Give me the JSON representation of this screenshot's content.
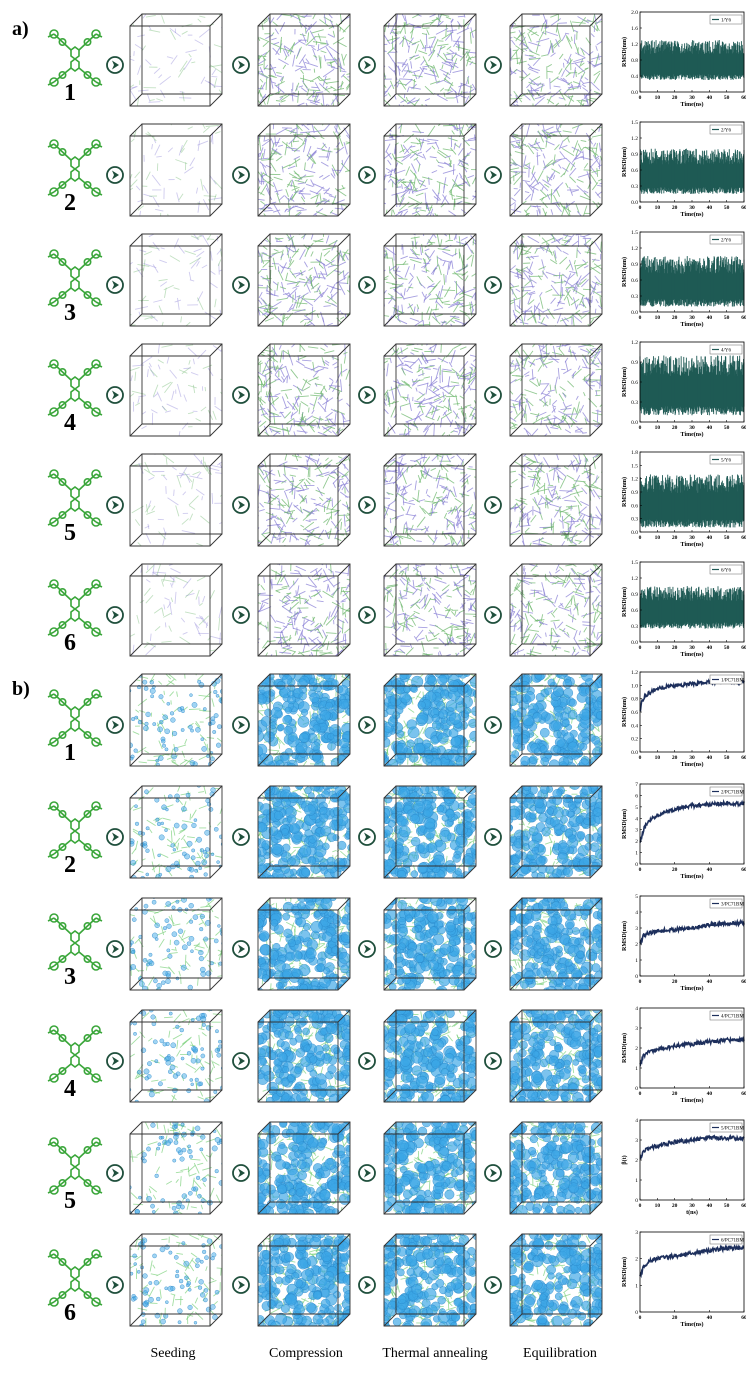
{
  "panels": {
    "a": {
      "label": "a)"
    },
    "b": {
      "label": "b)"
    }
  },
  "stages": [
    "Seeding",
    "Compression",
    "Thermal annealing",
    "Equilibration"
  ],
  "chart_axes": {
    "xlabel": "Time(ns)",
    "ylabel": "RMSD(nm)"
  },
  "colors": {
    "molecule": "#3aa63a",
    "arrow": "#1f4f3c",
    "y6_fill": "#1f5a55",
    "pcbm_line": "#1d2f5c",
    "a_box_strands": [
      "#8b82d6",
      "#6fb86f"
    ],
    "b_box_spheres": "#3ba6e6",
    "b_box_strands": "#7ad07a"
  },
  "chart_data": [
    {
      "type": "line",
      "panel": "a",
      "index": "1",
      "legend": "1/Y6",
      "title": "",
      "xlabel": "Time(ns)",
      "ylabel": "RMSD(nm)",
      "xlim": [
        0,
        60
      ],
      "ylim": [
        0,
        2.0
      ],
      "yticks": [
        "0.0",
        "0.4",
        "0.8",
        "1.2",
        "1.6",
        "2.0"
      ],
      "xticks": [
        "0",
        "10",
        "20",
        "30",
        "40",
        "50",
        "60"
      ],
      "band": {
        "low": 0.3,
        "high": 1.3
      }
    },
    {
      "type": "line",
      "panel": "a",
      "index": "2",
      "legend": "2/Y6",
      "title": "",
      "xlabel": "Time(ns)",
      "ylabel": "RMSD(nm)",
      "xlim": [
        0,
        60
      ],
      "ylim": [
        0,
        1.5
      ],
      "yticks": [
        "0.0",
        "0.3",
        "0.6",
        "0.9",
        "1.2",
        "1.5"
      ],
      "xticks": [
        "0",
        "10",
        "20",
        "30",
        "40",
        "50",
        "60"
      ],
      "band": {
        "low": 0.15,
        "high": 1.0
      }
    },
    {
      "type": "line",
      "panel": "a",
      "index": "3",
      "legend": "2/Y6",
      "title": "",
      "xlabel": "Time(ns)",
      "ylabel": "RMSD(nm)",
      "xlim": [
        0,
        60
      ],
      "ylim": [
        0,
        1.5
      ],
      "yticks": [
        "0.0",
        "0.3",
        "0.6",
        "0.9",
        "1.2",
        "1.5"
      ],
      "xticks": [
        "0",
        "10",
        "20",
        "30",
        "40",
        "50",
        "60"
      ],
      "band": {
        "low": 0.1,
        "high": 1.05
      }
    },
    {
      "type": "line",
      "panel": "a",
      "index": "4",
      "legend": "4/Y6",
      "title": "",
      "xlabel": "Time(ns)",
      "ylabel": "RMSD(nm)",
      "xlim": [
        0,
        60
      ],
      "ylim": [
        0,
        1.2
      ],
      "yticks": [
        "0.0",
        "0.3",
        "0.6",
        "0.9",
        "1.2"
      ],
      "xticks": [
        "0",
        "10",
        "20",
        "30",
        "40",
        "50",
        "60"
      ],
      "band": {
        "low": 0.1,
        "high": 1.0
      }
    },
    {
      "type": "line",
      "panel": "a",
      "index": "5",
      "legend": "5/Y6",
      "title": "",
      "xlabel": "Time(ns)",
      "ylabel": "RMSD(nm)",
      "xlim": [
        0,
        60
      ],
      "ylim": [
        0,
        1.8
      ],
      "yticks": [
        "0.0",
        "0.3",
        "0.6",
        "0.9",
        "1.2",
        "1.5",
        "1.8"
      ],
      "xticks": [
        "0",
        "10",
        "20",
        "30",
        "40",
        "50",
        "60"
      ],
      "band": {
        "low": 0.1,
        "high": 1.3
      }
    },
    {
      "type": "line",
      "panel": "a",
      "index": "6",
      "legend": "6/Y6",
      "title": "",
      "xlabel": "Time(ns)",
      "ylabel": "RMSD(nm)",
      "xlim": [
        0,
        60
      ],
      "ylim": [
        0,
        1.5
      ],
      "yticks": [
        "0.0",
        "0.3",
        "0.6",
        "0.9",
        "1.2",
        "1.5"
      ],
      "xticks": [
        "0",
        "10",
        "20",
        "30",
        "40",
        "50",
        "60"
      ],
      "band": {
        "low": 0.25,
        "high": 1.05
      }
    },
    {
      "type": "line",
      "panel": "b",
      "index": "1",
      "legend": "1/PC71BM",
      "title": "",
      "xlabel": "Time(ns)",
      "ylabel": "RMSD(nm)",
      "xlim": [
        0,
        60
      ],
      "ylim": [
        0,
        1.2
      ],
      "yticks": [
        "0.0",
        "0.2",
        "0.4",
        "0.6",
        "0.8",
        "1.0",
        "1.2"
      ],
      "xticks": [
        "0",
        "10",
        "20",
        "30",
        "40",
        "50",
        "60"
      ],
      "series": [
        {
          "x": [
            0,
            1,
            3,
            6,
            10,
            15,
            20,
            30,
            40,
            50,
            60
          ],
          "y": [
            0.6,
            0.75,
            0.85,
            0.9,
            0.95,
            0.98,
            1.0,
            1.02,
            1.05,
            1.05,
            1.05
          ]
        }
      ]
    },
    {
      "type": "line",
      "panel": "b",
      "index": "2",
      "legend": "2/PC71BM",
      "title": "",
      "xlabel": "Time(ns)",
      "ylabel": "RMSD(nm)",
      "xlim": [
        0,
        60
      ],
      "ylim": [
        0,
        7
      ],
      "yticks": [
        "0",
        "1",
        "2",
        "3",
        "4",
        "5",
        "6",
        "7"
      ],
      "xticks": [
        "0",
        "20",
        "40",
        "60"
      ],
      "series": [
        {
          "x": [
            0,
            2,
            5,
            10,
            15,
            20,
            30,
            40,
            50,
            60
          ],
          "y": [
            1.8,
            3.0,
            3.8,
            4.3,
            4.6,
            4.8,
            5.1,
            5.2,
            5.3,
            5.3
          ]
        }
      ]
    },
    {
      "type": "line",
      "panel": "b",
      "index": "3",
      "legend": "3/PC71BM",
      "title": "",
      "xlabel": "Time(ns)",
      "ylabel": "RMSD(nm)",
      "xlim": [
        0,
        60
      ],
      "ylim": [
        0,
        5
      ],
      "yticks": [
        "0",
        "1",
        "2",
        "3",
        "4",
        "5"
      ],
      "xticks": [
        "0",
        "20",
        "40",
        "60"
      ],
      "series": [
        {
          "x": [
            0,
            2,
            5,
            10,
            20,
            30,
            40,
            50,
            60
          ],
          "y": [
            2.0,
            2.5,
            2.7,
            2.8,
            2.9,
            3.0,
            3.2,
            3.3,
            3.3
          ]
        }
      ]
    },
    {
      "type": "line",
      "panel": "b",
      "index": "4",
      "legend": "4/PC71BM",
      "title": "",
      "xlabel": "Time(ns)",
      "ylabel": "RMSD(nm)",
      "xlim": [
        0,
        60
      ],
      "ylim": [
        0,
        4
      ],
      "yticks": [
        "0",
        "1",
        "2",
        "3",
        "4"
      ],
      "xticks": [
        "0",
        "20",
        "40",
        "60"
      ],
      "series": [
        {
          "x": [
            0,
            2,
            5,
            10,
            20,
            30,
            40,
            50,
            60
          ],
          "y": [
            1.2,
            1.6,
            1.8,
            1.9,
            2.1,
            2.2,
            2.3,
            2.4,
            2.4
          ]
        }
      ]
    },
    {
      "type": "line",
      "panel": "b",
      "index": "5",
      "legend": "5/PC71BM",
      "title": "",
      "xlabel": "t(ns)",
      "ylabel": "β(t)",
      "xlim": [
        0,
        60
      ],
      "ylim": [
        0,
        4
      ],
      "yticks": [
        "0",
        "1",
        "2",
        "3",
        "4"
      ],
      "xticks": [
        "0",
        "10",
        "20",
        "30",
        "40",
        "50",
        "60"
      ],
      "series": [
        {
          "x": [
            0,
            2,
            5,
            10,
            20,
            30,
            40,
            50,
            60
          ],
          "y": [
            2.0,
            2.4,
            2.6,
            2.7,
            2.9,
            3.0,
            3.1,
            3.1,
            3.1
          ]
        }
      ]
    },
    {
      "type": "line",
      "panel": "b",
      "index": "6",
      "legend": "6/PC71BM",
      "title": "",
      "xlabel": "Time(ns)",
      "ylabel": "RMSD(nm)",
      "xlim": [
        0,
        60
      ],
      "ylim": [
        0,
        3
      ],
      "yticks": [
        "0",
        "1",
        "2",
        "3"
      ],
      "xticks": [
        "0",
        "20",
        "40",
        "60"
      ],
      "series": [
        {
          "x": [
            0,
            2,
            5,
            10,
            20,
            30,
            40,
            50,
            60
          ],
          "y": [
            1.3,
            1.7,
            1.9,
            2.0,
            2.1,
            2.2,
            2.3,
            2.4,
            2.4
          ]
        }
      ]
    }
  ]
}
